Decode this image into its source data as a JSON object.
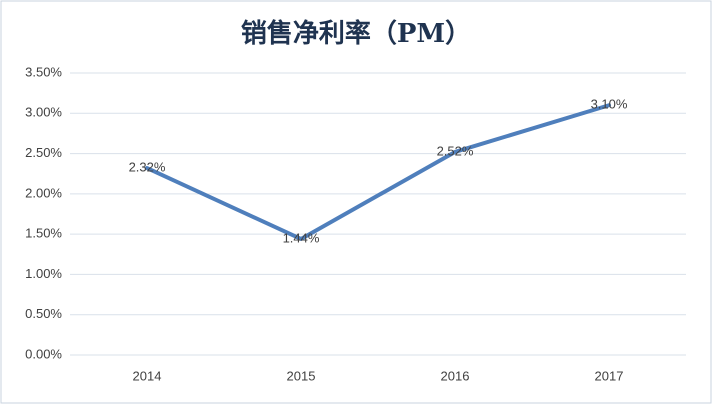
{
  "chart_data": {
    "type": "line",
    "title": "销售净利率（PM）",
    "categories": [
      "2014",
      "2015",
      "2016",
      "2017"
    ],
    "series": [
      {
        "name": "销售净利率",
        "color": "#4f7fbc",
        "values": [
          2.32,
          1.44,
          2.52,
          3.1
        ],
        "value_labels": [
          "2.32%",
          "1.44%",
          "2.52%",
          "3.10%"
        ]
      }
    ],
    "ylim": [
      0,
      3.5
    ],
    "yticks": [
      {
        "value": 0,
        "label": "0.00%"
      },
      {
        "value": 0.5,
        "label": "0.50%"
      },
      {
        "value": 1,
        "label": "1.00%"
      },
      {
        "value": 1.5,
        "label": "1.50%"
      },
      {
        "value": 2,
        "label": "2.00%"
      },
      {
        "value": 2.5,
        "label": "2.50%"
      },
      {
        "value": 3,
        "label": "3.00%"
      },
      {
        "value": 3.5,
        "label": "3.50%"
      }
    ],
    "grid": true
  }
}
